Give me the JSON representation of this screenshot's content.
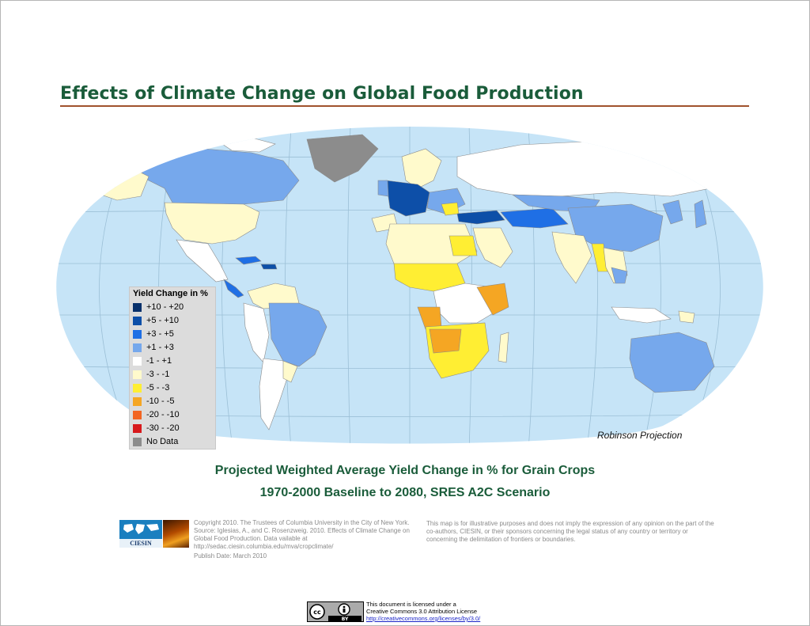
{
  "title": "Effects of Climate Change on Global Food Production",
  "projection": "Robinson Projection",
  "legend": {
    "title": "Yield Change in %",
    "items": [
      {
        "label": "+10 - +20",
        "color": "#08306b"
      },
      {
        "label": "+5 - +10",
        "color": "#0d4fa8"
      },
      {
        "label": "+3 - +5",
        "color": "#1f6fe5"
      },
      {
        "label": "+1 - +3",
        "color": "#76a8ec"
      },
      {
        "label": "-1 - +1",
        "color": "#ffffff"
      },
      {
        "label": "-3 - -1",
        "color": "#fffacc"
      },
      {
        "label": "-5 - -3",
        "color": "#ffee33"
      },
      {
        "label": "-10 - -5",
        "color": "#f5a623"
      },
      {
        "label": "-20 - -10",
        "color": "#f26522"
      },
      {
        "label": "-30 - -20",
        "color": "#d7191c"
      },
      {
        "label": "No Data",
        "color": "#8c8c8c"
      }
    ]
  },
  "subtitle1": "Projected Weighted Average Yield Change in % for Grain Crops",
  "subtitle2": "1970-2000 Baseline to 2080, SRES A2C Scenario",
  "credits": {
    "copyright": "Copyright 2010. The Trustees of Columbia University in the City of New York. Source: Iglesias, A., and C. Rosenzweig. 2010.  Effects of Climate Change on Global Food Production. Data vailable at http://sedac.ciesin.columbia.edu/mva/cropclimate/",
    "publish": "Publish Date: March 2010",
    "disclaimer": "This map is for illustrative purposes and does not imply the expression of any opinion on the part of the co-authors, CIESIN, or their sponsors concerning the legal status of any country or territory or concerning the delimitation of frontiers or boundaries."
  },
  "license": {
    "line1": "This document is licensed under a",
    "line2": "Creative Commons 3.0 Attribution License",
    "link": "http://creativecommons.org/licenses/by/3.0/",
    "badge": "BY"
  },
  "logo_text": "CIESIN"
}
